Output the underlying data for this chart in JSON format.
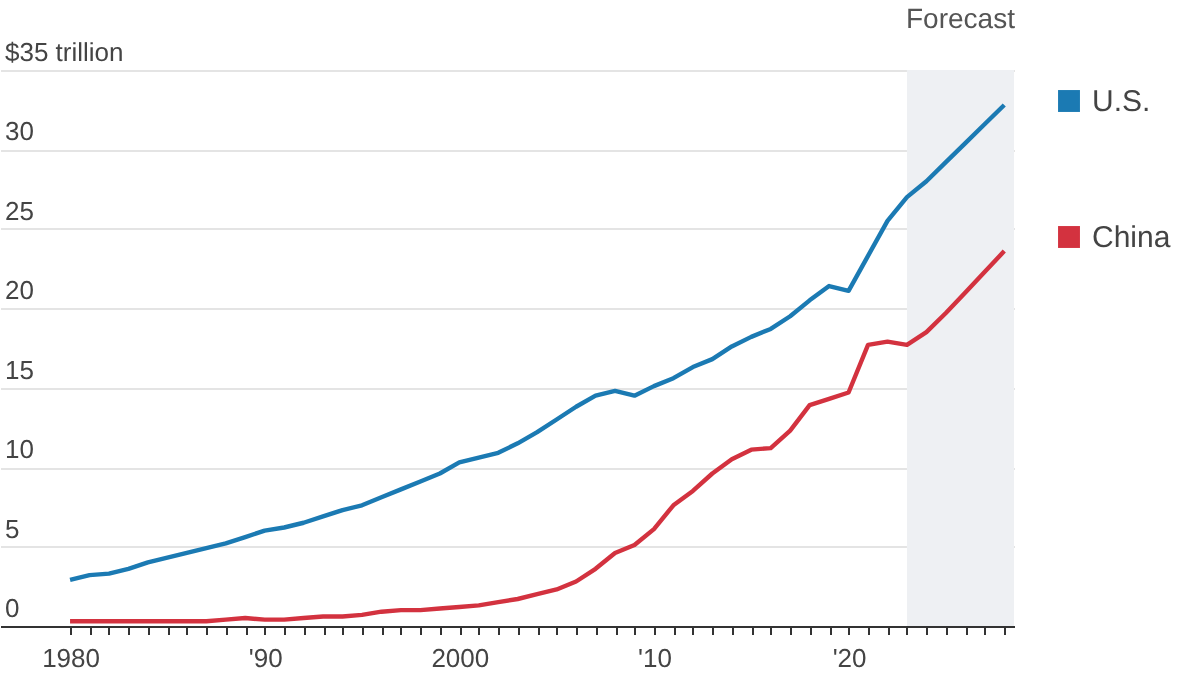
{
  "chart_data": {
    "type": "line",
    "x": [
      1980,
      1981,
      1982,
      1983,
      1984,
      1985,
      1986,
      1987,
      1988,
      1989,
      1990,
      1991,
      1992,
      1993,
      1994,
      1995,
      1996,
      1997,
      1998,
      1999,
      2000,
      2001,
      2002,
      2003,
      2004,
      2005,
      2006,
      2007,
      2008,
      2009,
      2010,
      2011,
      2012,
      2013,
      2014,
      2015,
      2016,
      2017,
      2018,
      2019,
      2020,
      2021,
      2022,
      2023,
      2024,
      2025,
      2026,
      2027,
      2028
    ],
    "series": [
      {
        "name": "U.S.",
        "color": "#1b7ab3",
        "values": [
          2.9,
          3.2,
          3.3,
          3.6,
          4,
          4.3,
          4.6,
          4.9,
          5.2,
          5.6,
          6,
          6.2,
          6.5,
          6.9,
          7.3,
          7.6,
          8.1,
          8.6,
          9.1,
          9.6,
          10.3,
          10.6,
          10.9,
          11.5,
          12.2,
          13,
          13.8,
          14.5,
          14.8,
          14.5,
          15.1,
          15.6,
          16.3,
          16.8,
          17.6,
          18.2,
          18.7,
          19.5,
          20.5,
          21.4,
          21.1,
          23.3,
          25.5,
          27,
          28,
          29.2,
          30.4,
          31.6,
          32.8
        ]
      },
      {
        "name": "China",
        "color": "#d3323f",
        "values": [
          0.3,
          0.3,
          0.3,
          0.3,
          0.3,
          0.3,
          0.3,
          0.3,
          0.4,
          0.5,
          0.4,
          0.4,
          0.5,
          0.6,
          0.6,
          0.7,
          0.9,
          1,
          1,
          1.1,
          1.2,
          1.3,
          1.5,
          1.7,
          2,
          2.3,
          2.8,
          3.6,
          4.6,
          5.1,
          6.1,
          7.6,
          8.5,
          9.6,
          10.5,
          11.1,
          11.2,
          12.3,
          13.9,
          14.3,
          14.7,
          17.7,
          17.9,
          17.7,
          18.5,
          19.7,
          21,
          22.3,
          23.6
        ]
      }
    ],
    "xlim": [
      1976.4,
      2028.5
    ],
    "xticks": [
      {
        "value": 1980,
        "label": "1980"
      },
      {
        "value": 1981,
        "label": null
      },
      {
        "value": 1982,
        "label": null
      },
      {
        "value": 1983,
        "label": null
      },
      {
        "value": 1984,
        "label": null
      },
      {
        "value": 1985,
        "label": null
      },
      {
        "value": 1986,
        "label": null
      },
      {
        "value": 1987,
        "label": null
      },
      {
        "value": 1988,
        "label": null
      },
      {
        "value": 1989,
        "label": null
      },
      {
        "value": 1990,
        "label": "'90"
      },
      {
        "value": 1991,
        "label": null
      },
      {
        "value": 1992,
        "label": null
      },
      {
        "value": 1993,
        "label": null
      },
      {
        "value": 1994,
        "label": null
      },
      {
        "value": 1995,
        "label": null
      },
      {
        "value": 1996,
        "label": null
      },
      {
        "value": 1997,
        "label": null
      },
      {
        "value": 1998,
        "label": null
      },
      {
        "value": 1999,
        "label": null
      },
      {
        "value": 2000,
        "label": "2000"
      },
      {
        "value": 2001,
        "label": null
      },
      {
        "value": 2002,
        "label": null
      },
      {
        "value": 2003,
        "label": null
      },
      {
        "value": 2004,
        "label": null
      },
      {
        "value": 2005,
        "label": null
      },
      {
        "value": 2006,
        "label": null
      },
      {
        "value": 2007,
        "label": null
      },
      {
        "value": 2008,
        "label": null
      },
      {
        "value": 2009,
        "label": null
      },
      {
        "value": 2010,
        "label": "'10"
      },
      {
        "value": 2011,
        "label": null
      },
      {
        "value": 2012,
        "label": null
      },
      {
        "value": 2013,
        "label": null
      },
      {
        "value": 2014,
        "label": null
      },
      {
        "value": 2015,
        "label": null
      },
      {
        "value": 2016,
        "label": null
      },
      {
        "value": 2017,
        "label": null
      },
      {
        "value": 2018,
        "label": null
      },
      {
        "value": 2019,
        "label": null
      },
      {
        "value": 2020,
        "label": "'20"
      },
      {
        "value": 2021,
        "label": null
      },
      {
        "value": 2022,
        "label": null
      },
      {
        "value": 2023,
        "label": null
      },
      {
        "value": 2024,
        "label": null
      },
      {
        "value": 2025,
        "label": null
      },
      {
        "value": 2026,
        "label": null
      },
      {
        "value": 2027,
        "label": null
      },
      {
        "value": 2028,
        "label": null
      }
    ],
    "ylim": [
      0,
      35
    ],
    "yticks": [
      0,
      5,
      10,
      15,
      20,
      25,
      30,
      {
        "value": 35,
        "label": "$35 trillion"
      }
    ],
    "bands": [
      {
        "axis": "x",
        "from": 2023,
        "to": 2028.5,
        "label": "Forecast",
        "color": "#eef0f3"
      }
    ],
    "grid": "y",
    "legend": "right"
  }
}
